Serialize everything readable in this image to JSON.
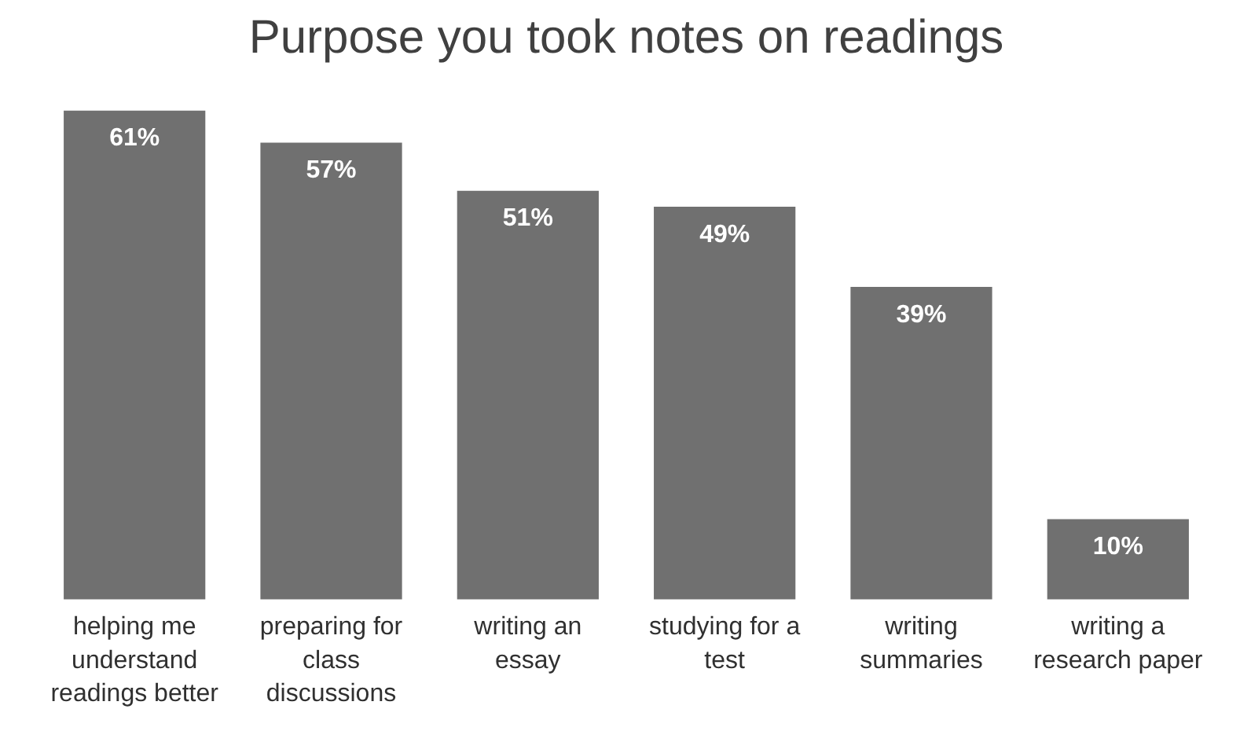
{
  "chart_data": {
    "type": "bar",
    "title": "Purpose you took notes on readings",
    "categories": [
      "helping me understand readings better",
      "preparing for class discussions",
      "writing an essay",
      "studying for a test",
      "writing summaries",
      "writing a research paper"
    ],
    "values": [
      61,
      57,
      51,
      49,
      39,
      10
    ],
    "value_labels": [
      "61%",
      "57%",
      "51%",
      "49%",
      "39%",
      "10%"
    ],
    "color": "#707070"
  }
}
